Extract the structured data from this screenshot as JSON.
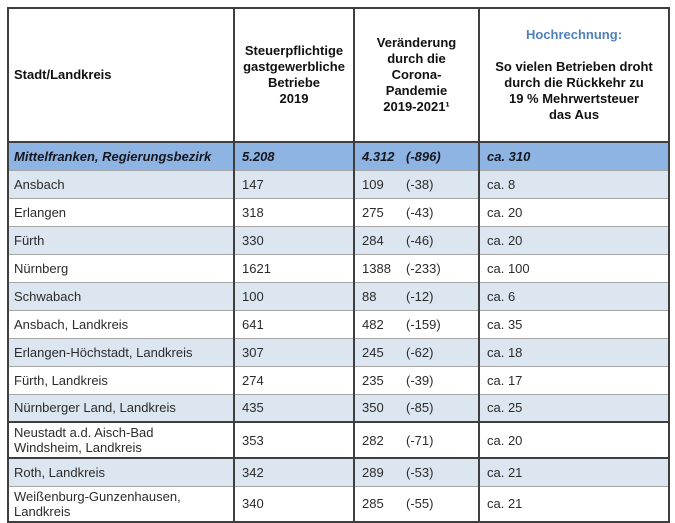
{
  "table": {
    "header": {
      "region": "Stadt/Landkreis",
      "businesses": "Steuerpflichtige\ngastgewerbliche\nBetriebe\n2019",
      "change": "Veränderung\ndurch die\nCorona-\nPandemie\n2019-2021¹",
      "projection_title": "Hochrechnung:",
      "projection_subtitle": "So vielen Betrieben droht\ndurch die Rückkehr zu\n19 % Mehrwertsteuer\ndas Aus"
    },
    "rows": [
      {
        "region": "Mittelfranken, Regierungsbezirk",
        "businesses_2019": "5.208",
        "remaining_2021": "4.312",
        "delta": "(-896)",
        "projection": "ca. 310"
      },
      {
        "region": "Ansbach",
        "businesses_2019": "147",
        "remaining_2021": "109",
        "delta": "(-38)",
        "projection": "ca. 8"
      },
      {
        "region": "Erlangen",
        "businesses_2019": "318",
        "remaining_2021": "275",
        "delta": "(-43)",
        "projection": "ca. 20"
      },
      {
        "region": "Fürth",
        "businesses_2019": "330",
        "remaining_2021": "284",
        "delta": "(-46)",
        "projection": "ca. 20"
      },
      {
        "region": "Nürnberg",
        "businesses_2019": "1621",
        "remaining_2021": "1388",
        "delta": "(-233)",
        "projection": "ca. 100"
      },
      {
        "region": "Schwabach",
        "businesses_2019": "100",
        "remaining_2021": "88",
        "delta": "(-12)",
        "projection": "ca. 6"
      },
      {
        "region": "Ansbach, Landkreis",
        "businesses_2019": "641",
        "remaining_2021": "482",
        "delta": "(-159)",
        "projection": "ca. 35"
      },
      {
        "region": "Erlangen-Höchstadt, Landkreis",
        "businesses_2019": "307",
        "remaining_2021": "245",
        "delta": "(-62)",
        "projection": "ca. 18"
      },
      {
        "region": "Fürth, Landkreis",
        "businesses_2019": "274",
        "remaining_2021": "235",
        "delta": "(-39)",
        "projection": "ca. 17"
      },
      {
        "region": "Nürnberger Land, Landkreis",
        "businesses_2019": "435",
        "remaining_2021": "350",
        "delta": "(-85)",
        "projection": "ca. 25"
      },
      {
        "region": "Neustadt a.d. Aisch-Bad\nWindsheim, Landkreis",
        "businesses_2019": "353",
        "remaining_2021": "282",
        "delta": "(-71)",
        "projection": "ca. 20"
      },
      {
        "region": "Roth, Landkreis",
        "businesses_2019": "342",
        "remaining_2021": "289",
        "delta": "(-53)",
        "projection": "ca. 21"
      },
      {
        "region": "Weißenburg-Gunzenhausen,\nLandkreis",
        "businesses_2019": "340",
        "remaining_2021": "285",
        "delta": "(-55)",
        "projection": "ca. 21"
      }
    ],
    "colors": {
      "highlight_row_bg": "#8DB4E2",
      "stripe_row_bg": "#DCE6F1",
      "projection_title_blue": "#4F81BD",
      "border_dark": "#3f3f3f",
      "border_light": "#a6a6a6"
    }
  },
  "chart_data": {
    "type": "table",
    "title": "",
    "columns": [
      "Stadt/Landkreis",
      "Steuerpflichtige gastgewerbliche Betriebe 2019",
      "Veränderung durch die Corona-Pandemie 2019-2021¹",
      "Hochrechnung: So vielen Betrieben droht durch die Rückkehr zu 19 % Mehrwertsteuer das Aus"
    ],
    "rows": [
      [
        "Mittelfranken, Regierungsbezirk",
        "5.208",
        "4.312 (-896)",
        "ca. 310"
      ],
      [
        "Ansbach",
        "147",
        "109 (-38)",
        "ca. 8"
      ],
      [
        "Erlangen",
        "318",
        "275 (-43)",
        "ca. 20"
      ],
      [
        "Fürth",
        "330",
        "284 (-46)",
        "ca. 20"
      ],
      [
        "Nürnberg",
        "1621",
        "1388 (-233)",
        "ca. 100"
      ],
      [
        "Schwabach",
        "100",
        "88 (-12)",
        "ca. 6"
      ],
      [
        "Ansbach, Landkreis",
        "641",
        "482 (-159)",
        "ca. 35"
      ],
      [
        "Erlangen-Höchstadt, Landkreis",
        "307",
        "245 (-62)",
        "ca. 18"
      ],
      [
        "Fürth, Landkreis",
        "274",
        "235 (-39)",
        "ca. 17"
      ],
      [
        "Nürnberger Land, Landkreis",
        "435",
        "350 (-85)",
        "ca. 25"
      ],
      [
        "Neustadt a.d. Aisch-Bad Windsheim, Landkreis",
        "353",
        "282 (-71)",
        "ca. 20"
      ],
      [
        "Roth, Landkreis",
        "342",
        "289 (-53)",
        "ca. 21"
      ],
      [
        "Weißenburg-Gunzenhausen, Landkreis",
        "340",
        "285 (-55)",
        "ca. 21"
      ]
    ]
  }
}
